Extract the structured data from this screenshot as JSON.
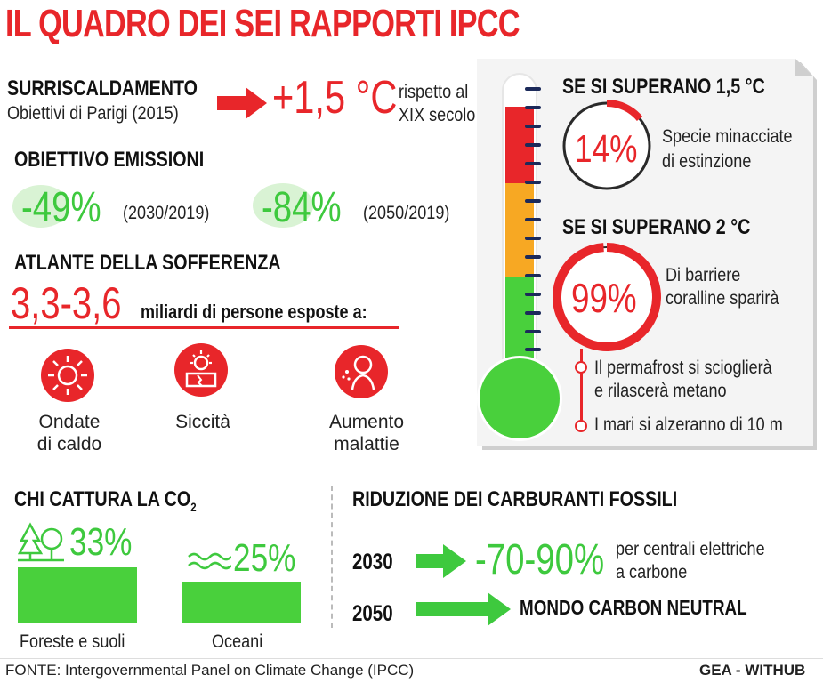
{
  "title": "IL QUADRO DEI SEI RAPPORTI IPCC",
  "warming": {
    "heading": "SURRISCALDAMENTO",
    "sub": "Obiettivi di Parigi (2015)",
    "value": "+1,5 °C",
    "note_line1": "rispetto al",
    "note_line2": "XIX secolo"
  },
  "emissions": {
    "heading": "OBIETTIVO EMISSIONI",
    "items": [
      {
        "value": "-49%",
        "period": "(2030/2019)"
      },
      {
        "value": "-84%",
        "period": "(2050/2019)"
      }
    ]
  },
  "suffering": {
    "heading": "ATLANTE DELLA SOFFERENZA",
    "value": "3,3-3,6",
    "text": "miliardi di persone esposte a:",
    "items": [
      {
        "icon": "sun-heat-icon",
        "line1": "Ondate",
        "line2": "di caldo"
      },
      {
        "icon": "drought-icon",
        "line1": "Siccità",
        "line2": ""
      },
      {
        "icon": "sick-person-icon",
        "line1": "Aumento",
        "line2": "malattie"
      }
    ]
  },
  "co2": {
    "heading": "CHI CATTURA LA CO",
    "heading_sub": "2",
    "items": [
      {
        "icon": "trees-icon",
        "value": "33%",
        "label": "Foreste e suoli",
        "share": 33
      },
      {
        "icon": "waves-icon",
        "value": "25%",
        "label": "Oceani",
        "share": 25
      }
    ]
  },
  "fossil": {
    "heading": "RIDUZIONE DEI CARBURANTI FOSSILI",
    "rows": [
      {
        "year": "2030",
        "value": "-70-90%",
        "note_line1": "per centrali elettriche",
        "note_line2": "a carbone"
      },
      {
        "year": "2050",
        "value": "",
        "note_line1": "MONDO CARBON NEUTRAL",
        "note_line2": ""
      }
    ]
  },
  "panel": {
    "block1": {
      "heading": "SE SI SUPERANO 1,5 °C",
      "value": "14%",
      "share": 14,
      "line1": "Specie minacciate",
      "line2": "di estinzione"
    },
    "block2": {
      "heading": "SE SI SUPERANO 2 °C",
      "value": "99%",
      "share": 99,
      "line1": "Di barriere",
      "line2": "coralline sparirà"
    },
    "bullets": [
      {
        "line1": "Il permafrost si scioglierà",
        "line2": "e rilascerà metano"
      },
      {
        "line1": "I mari si alzeranno di 10 m",
        "line2": ""
      }
    ]
  },
  "footer": {
    "source": "FONTE: Intergovernmental Panel on Climate Change (IPCC)",
    "credit": "GEA - WITHUB"
  },
  "colors": {
    "red": "#e8262a",
    "green": "#3ec93e",
    "orange": "#f7a823",
    "navy": "#1c2a5a"
  }
}
